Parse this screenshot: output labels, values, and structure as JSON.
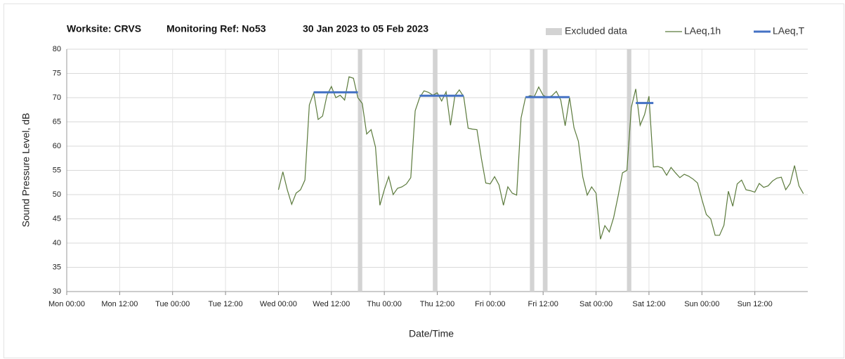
{
  "chart_data": {
    "type": "line",
    "title": [
      "Worksite: CRVS",
      "Monitoring Ref: No53",
      "30 Jan 2023 to 05 Feb 2023"
    ],
    "y_label": "Sound Pressure Level, dB",
    "x_label": "Date/Time",
    "xlim": [
      0,
      168
    ],
    "xticks": [
      {
        "value": 0,
        "label": "Mon 00:00"
      },
      {
        "value": 12,
        "label": "Mon 12:00"
      },
      {
        "value": 24,
        "label": "Tue 00:00"
      },
      {
        "value": 36,
        "label": "Tue 12:00"
      },
      {
        "value": 48,
        "label": "Wed 00:00"
      },
      {
        "value": 60,
        "label": "Wed 12:00"
      },
      {
        "value": 72,
        "label": "Thu 00:00"
      },
      {
        "value": 84,
        "label": "Thu 12:00"
      },
      {
        "value": 96,
        "label": "Fri 00:00"
      },
      {
        "value": 108,
        "label": "Fri 12:00"
      },
      {
        "value": 120,
        "label": "Sat 00:00"
      },
      {
        "value": 132,
        "label": "Sat 12:00"
      },
      {
        "value": 144,
        "label": "Sun 00:00"
      },
      {
        "value": 156,
        "label": "Sun 12:00"
      }
    ],
    "ylim": [
      30,
      80
    ],
    "yticks": [
      30,
      35,
      40,
      45,
      50,
      55,
      60,
      65,
      70,
      75,
      80
    ],
    "grid": true,
    "x": [
      48,
      49,
      50,
      51,
      52,
      53,
      54,
      55,
      56,
      57,
      58,
      59,
      60,
      61,
      62,
      63,
      64,
      65,
      66,
      67,
      68,
      69,
      70,
      71,
      72,
      73,
      74,
      75,
      76,
      77,
      78,
      79,
      80,
      81,
      82,
      83,
      84,
      85,
      86,
      87,
      88,
      89,
      90,
      91,
      92,
      93,
      94,
      95,
      96,
      97,
      98,
      99,
      100,
      101,
      102,
      103,
      104,
      105,
      106,
      107,
      108,
      109,
      110,
      111,
      112,
      113,
      114,
      115,
      116,
      117,
      118,
      119,
      120,
      121,
      122,
      123,
      124,
      125,
      126,
      127,
      128,
      129,
      130,
      131,
      132,
      133,
      134,
      135,
      136,
      137,
      138,
      139,
      140,
      141,
      142,
      143,
      144,
      145,
      146,
      147,
      148,
      149,
      150,
      151,
      152,
      153,
      154,
      155,
      156,
      157,
      158,
      159,
      160,
      161,
      162,
      163,
      164,
      165,
      166,
      167
    ],
    "series": [
      {
        "name": "LAeq,1h",
        "color": "#5b7a3c",
        "values": [
          51,
          54.7,
          51,
          48,
          50.3,
          51,
          53,
          68.5,
          71,
          65.5,
          66.2,
          70.5,
          72.3,
          70,
          70.5,
          69.5,
          74.3,
          74,
          70,
          68.8,
          62.5,
          63.4,
          59.8,
          47.8,
          51,
          53.7,
          50,
          51.3,
          51.6,
          52.2,
          53.5,
          67.3,
          70,
          71.4,
          71.1,
          70.5,
          71,
          69.3,
          71.2,
          64.3,
          70.4,
          71.6,
          70.2,
          63.7,
          63.5,
          63.4,
          57.5,
          52.4,
          52.2,
          53.7,
          52,
          47.8,
          51.6,
          50.3,
          49.9,
          65.8,
          70,
          70.4,
          70.2,
          72.2,
          70.5,
          70,
          70.4,
          71.3,
          69.5,
          64.2,
          70,
          63.8,
          61,
          53.6,
          49.9,
          51.6,
          50.3,
          40.8,
          43.6,
          42.3,
          45.3,
          49.7,
          54.5,
          55,
          68,
          71.8,
          64.3,
          66.5,
          70.3,
          55.7,
          55.8,
          55.5,
          54,
          55.6,
          54.5,
          53.5,
          54.2,
          53.8,
          53.2,
          52.4,
          49,
          45.9,
          45,
          41.6,
          41.6,
          43.7,
          50.7,
          47.6,
          52.2,
          53,
          51,
          50.8,
          50.5,
          52.3,
          51.5,
          51.8,
          52.8,
          53.4,
          53.6,
          51,
          52.3,
          56,
          51.8,
          50.2
        ]
      },
      {
        "name": "LAeq,T",
        "color": "#4472c4",
        "segments": [
          {
            "start": 56,
            "end": 66,
            "value": 71.1
          },
          {
            "start": 80,
            "end": 90,
            "value": 70.4
          },
          {
            "start": 104,
            "end": 114,
            "value": 70.1
          },
          {
            "start": 129,
            "end": 133,
            "value": 68.9
          }
        ]
      }
    ],
    "excluded": {
      "name": "Excluded data",
      "color": "#d3d3d3",
      "ranges": [
        [
          66,
          67
        ],
        [
          83,
          84
        ],
        [
          105,
          106
        ],
        [
          108,
          109
        ],
        [
          127,
          128
        ]
      ]
    }
  }
}
